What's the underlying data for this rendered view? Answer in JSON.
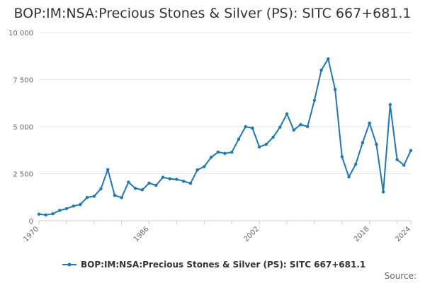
{
  "chart_data": {
    "type": "line",
    "title": "BOP:IM:NSA:Precious Stones & Silver (PS): SITC 667+681.1",
    "xlabel": "",
    "ylabel": "",
    "ylim": [
      0,
      10000
    ],
    "xlim": [
      1970,
      2024
    ],
    "y_ticks": [
      {
        "value": 0,
        "label": "0"
      },
      {
        "value": 2500,
        "label": "2 500"
      },
      {
        "value": 5000,
        "label": "5 000"
      },
      {
        "value": 7500,
        "label": "7 500"
      },
      {
        "value": 10000,
        "label": "10 000"
      }
    ],
    "x_ticks": [
      {
        "value": 1970,
        "label": "1970"
      },
      {
        "value": 1986,
        "label": "1986"
      },
      {
        "value": 2002,
        "label": "2002"
      },
      {
        "value": 2018,
        "label": "2018"
      },
      {
        "value": 2024,
        "label": "2024"
      }
    ],
    "grid": true,
    "legend_position": "bottom",
    "series": [
      {
        "name": "BOP:IM:NSA:Precious Stones & Silver (PS): SITC 667+681.1",
        "color": "#1f77b4",
        "x": [
          1970,
          1971,
          1972,
          1973,
          1974,
          1975,
          1976,
          1977,
          1978,
          1979,
          1980,
          1981,
          1982,
          1983,
          1984,
          1985,
          1986,
          1987,
          1988,
          1989,
          1990,
          1991,
          1992,
          1993,
          1994,
          1995,
          1996,
          1997,
          1998,
          1999,
          2000,
          2001,
          2002,
          2003,
          2004,
          2005,
          2006,
          2007,
          2008,
          2009,
          2010,
          2011,
          2012,
          2013,
          2014,
          2015,
          2016,
          2017,
          2018,
          2019,
          2020,
          2021,
          2022,
          2023,
          2024
        ],
        "values": [
          350,
          310,
          370,
          550,
          640,
          780,
          860,
          1240,
          1300,
          1700,
          2720,
          1350,
          1230,
          2050,
          1720,
          1640,
          2000,
          1880,
          2310,
          2230,
          2200,
          2100,
          1990,
          2700,
          2880,
          3370,
          3650,
          3580,
          3640,
          4330,
          5000,
          4920,
          3920,
          4060,
          4440,
          4970,
          5680,
          4820,
          5110,
          5000,
          6400,
          8000,
          8600,
          6980,
          3400,
          2330,
          3000,
          4150,
          5190,
          4060,
          1530,
          6170,
          3250,
          2950,
          3730
        ]
      }
    ]
  },
  "source_label": "Source:"
}
